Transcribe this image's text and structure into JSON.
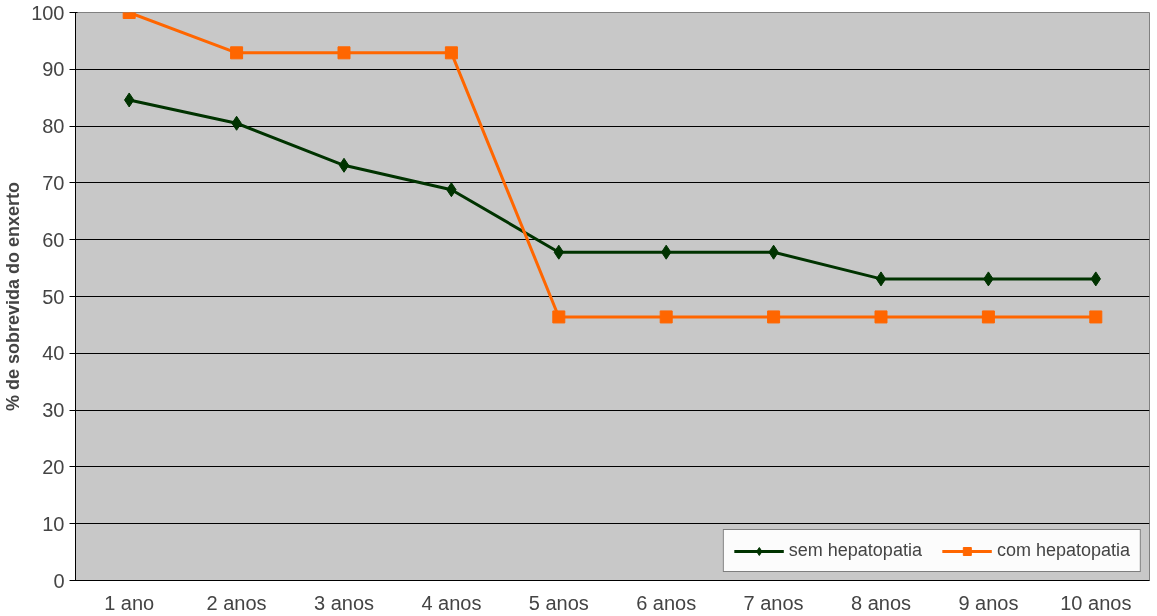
{
  "chart_data": {
    "type": "line",
    "ylabel": "% de sobrevida do enxerto",
    "categories": [
      "1 ano",
      "2 anos",
      "3 anos",
      "4 anos",
      "5 anos",
      "6 anos",
      "7 anos",
      "8 anos",
      "9 anos",
      "10 anos"
    ],
    "series": [
      {
        "name": "sem hepatopatia",
        "color": "#003300",
        "marker": "diamond",
        "values": [
          84.6,
          80.5,
          73.1,
          68.8,
          57.8,
          57.8,
          57.8,
          53.1,
          53.1,
          53.1
        ]
      },
      {
        "name": "com hepatopatia",
        "color": "#ff6600",
        "marker": "square",
        "values": [
          100,
          92.9,
          92.9,
          92.9,
          46.4,
          46.4,
          46.4,
          46.4,
          46.4,
          46.4
        ]
      }
    ],
    "ylim": [
      0,
      100
    ],
    "yticks": [
      0,
      10,
      20,
      30,
      40,
      50,
      60,
      70,
      80,
      90,
      100
    ],
    "grid": "y",
    "legend": "bottom right"
  }
}
